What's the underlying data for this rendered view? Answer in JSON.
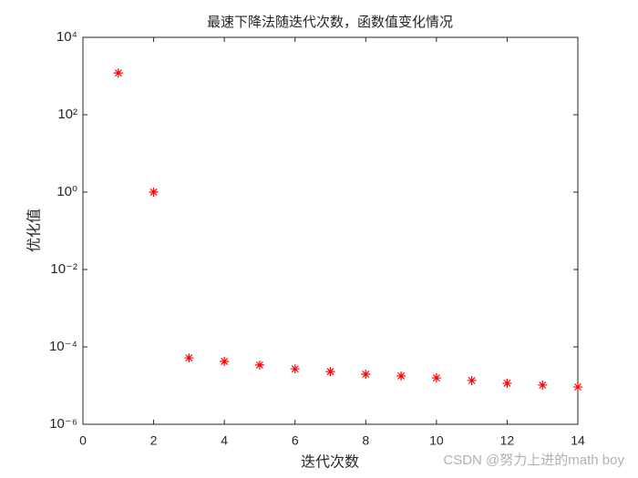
{
  "chart_data": {
    "type": "scatter",
    "title": "最速下降法随迭代次数，函数值变化情况",
    "x_label": "迭代次数",
    "y_label": "优化值",
    "x": [
      1,
      2,
      3,
      4,
      5,
      6,
      7,
      8,
      9,
      10,
      11,
      12,
      13,
      14
    ],
    "series": [
      {
        "color": "#ff0000",
        "marker": "*",
        "values": [
          1200,
          1,
          5.2e-05,
          4.2e-05,
          3.4e-05,
          2.7e-05,
          2.3e-05,
          1.97e-05,
          1.77e-05,
          1.58e-05,
          1.35e-05,
          1.15e-05,
          1.03e-05,
          9.2e-06
        ]
      }
    ],
    "xlim": [
      0,
      14
    ],
    "xticks": [
      0,
      2,
      4,
      6,
      8,
      10,
      12,
      14
    ],
    "y_scale": "log",
    "ylim": [
      1e-06,
      10000
    ],
    "yticks": [
      {
        "value": 1e-06,
        "label": "10⁻⁶"
      },
      {
        "value": 0.0001,
        "label": "10⁻⁴"
      },
      {
        "value": 0.01,
        "label": "10⁻²"
      },
      {
        "value": 1,
        "label": "10⁰"
      },
      {
        "value": 100,
        "label": "10²"
      },
      {
        "value": 10000,
        "label": "10⁴"
      }
    ],
    "grid": false,
    "watermark": "CSDN @努力上进的math boy"
  }
}
